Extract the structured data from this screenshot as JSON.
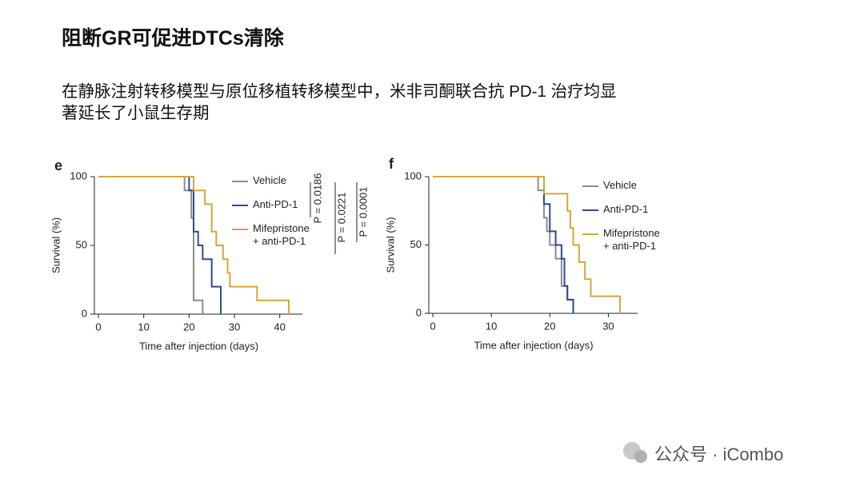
{
  "title": "阻断GR可促进DTCs清除",
  "subtitle": "在静脉注射转移模型与原位移植转移模型中，米非司酮联合抗 PD-1 治疗均显著延长了小鼠生存期",
  "watermark": "公众号 · iCombo",
  "chart_data": [
    {
      "type": "line",
      "step": true,
      "panel": "e",
      "xlabel": "Time after injection (days)",
      "ylabel": "Survival (%)",
      "xlim": [
        0,
        45
      ],
      "xticks": [
        0,
        10,
        20,
        30,
        40
      ],
      "ylim": [
        0,
        100
      ],
      "yticks": [
        0,
        50,
        100
      ],
      "annotations": [
        "P = 0.0186",
        "P = 0.0221",
        "P = 0.0001"
      ],
      "series": [
        {
          "name": "Vehicle",
          "color": "#8c8c8c",
          "x": [
            0,
            19,
            19,
            20.5,
            20.5,
            21,
            21,
            23,
            23
          ],
          "values": [
            100,
            100,
            90,
            90,
            70,
            70,
            10,
            10,
            0
          ]
        },
        {
          "name": "Anti-PD-1",
          "color": "#2e4a8f",
          "x": [
            0,
            20,
            20,
            21,
            21,
            22,
            22,
            23,
            23,
            25,
            25,
            27,
            27
          ],
          "values": [
            100,
            100,
            90,
            90,
            60,
            60,
            50,
            50,
            40,
            40,
            20,
            20,
            0
          ]
        },
        {
          "name": "Mifepristone\n+ anti-PD-1",
          "color": "#d4a73a",
          "x": [
            0,
            21,
            21,
            23.5,
            23.5,
            25,
            25,
            26,
            26,
            27.5,
            27.5,
            28.5,
            28.5,
            29,
            29,
            35,
            35,
            42,
            42
          ],
          "values": [
            100,
            100,
            90,
            90,
            80,
            80,
            60,
            60,
            50,
            50,
            40,
            40,
            30,
            30,
            20,
            20,
            10,
            10,
            0
          ]
        }
      ]
    },
    {
      "type": "line",
      "step": true,
      "panel": "f",
      "xlabel": "Time after injection (days)",
      "ylabel": "Survival (%)",
      "xlim": [
        0,
        35
      ],
      "xticks": [
        0,
        10,
        20,
        30
      ],
      "ylim": [
        0,
        100
      ],
      "yticks": [
        0,
        50,
        100
      ],
      "series": [
        {
          "name": "Vehicle",
          "color": "#8c8c8c",
          "x": [
            0,
            18,
            18,
            19,
            19,
            19.5,
            19.5,
            20,
            20,
            21,
            21,
            22,
            22,
            23,
            23,
            24,
            24
          ],
          "values": [
            100,
            100,
            90,
            90,
            70,
            70,
            60,
            60,
            50,
            50,
            40,
            40,
            20,
            20,
            10,
            10,
            0
          ]
        },
        {
          "name": "Anti-PD-1",
          "color": "#2e4a8f",
          "x": [
            0,
            19,
            19,
            20,
            20,
            21,
            21,
            22,
            22,
            22.5,
            22.5,
            23,
            23,
            24,
            24
          ],
          "values": [
            100,
            100,
            80,
            80,
            60,
            60,
            50,
            50,
            40,
            40,
            20,
            20,
            10,
            10,
            0
          ]
        },
        {
          "name": "Mifepristone\n+ anti-PD-1",
          "color": "#d4a73a",
          "x": [
            0,
            19,
            19,
            23,
            23,
            23.5,
            23.5,
            24,
            24,
            25,
            25,
            26,
            26,
            27,
            27,
            32,
            32
          ],
          "values": [
            100,
            100,
            87.5,
            87.5,
            75,
            75,
            62.5,
            62.5,
            50,
            50,
            37.5,
            37.5,
            25,
            25,
            12.5,
            12.5,
            0
          ]
        }
      ]
    }
  ]
}
